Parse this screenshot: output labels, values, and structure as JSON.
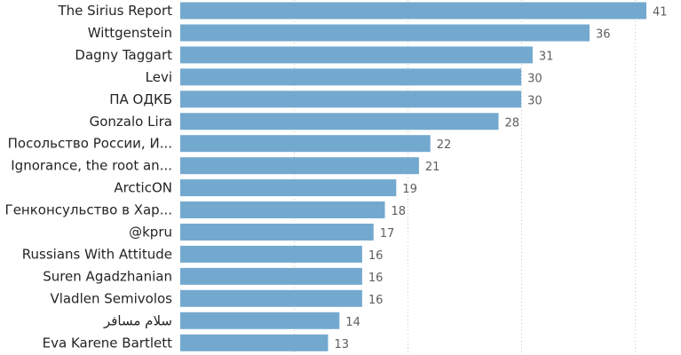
{
  "chart_data": {
    "type": "bar",
    "orientation": "horizontal",
    "title": "",
    "xlabel": "",
    "ylabel": "",
    "categories": [
      "The Sirius Report",
      "Wittgenstein",
      "Dagny Taggart",
      "Levi",
      "ПА ОДКБ",
      "Gonzalo Lira",
      "Посольство России, И...",
      "Ignorance, the root an...",
      "ArcticON",
      "Генконсульство в Хар...",
      "@kpru",
      "Russians With Attitude",
      "Suren Agadzhanian",
      "Vladlen Semivolos",
      "سلام مسافر",
      "Eva Karene Bartlett"
    ],
    "values": [
      41,
      36,
      31,
      30,
      30,
      28,
      22,
      21,
      19,
      18,
      17,
      16,
      16,
      16,
      14,
      13
    ],
    "xlim": [
      0,
      43.5
    ],
    "grid": true,
    "bar_color": "#74a9cf",
    "data_labels": true
  }
}
